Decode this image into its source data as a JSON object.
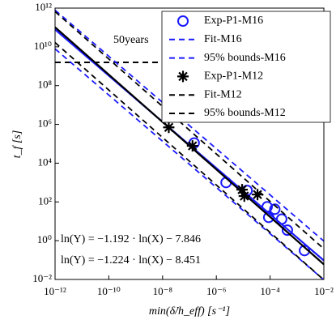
{
  "chart_data": {
    "type": "scatter",
    "log_x": true,
    "log_y": true,
    "xlabel": "min(δ̇/h_eff) [s⁻¹]",
    "ylabel": "t_f [s]",
    "xlim": [
      1e-12,
      0.01
    ],
    "ylim": [
      0.01,
      1000000000000
    ],
    "xticks": [
      {
        "value": 1e-12,
        "label": "10⁻¹²"
      },
      {
        "value": 1e-10,
        "label": "10⁻¹⁰"
      },
      {
        "value": 1e-08,
        "label": "10⁻⁸"
      },
      {
        "value": 1e-06,
        "label": "10⁻⁶"
      },
      {
        "value": 0.0001,
        "label": "10⁻⁴"
      },
      {
        "value": 0.01,
        "label": "10⁻²"
      }
    ],
    "yticks": [
      {
        "value": 0.01,
        "label": "10⁻²"
      },
      {
        "value": 1,
        "label": "10⁰"
      },
      {
        "value": 100,
        "label": "10²"
      },
      {
        "value": 10000,
        "label": "10⁴"
      },
      {
        "value": 1000000,
        "label": "10⁶"
      },
      {
        "value": 100000000,
        "label": "10⁸"
      },
      {
        "value": 10000000000,
        "label": "10¹⁰"
      },
      {
        "value": 1000000000000,
        "label": "10¹²"
      }
    ],
    "legend": "upper right",
    "reference_line": {
      "value": 1580000000,
      "label": "50years",
      "color": "#000000"
    },
    "annotations": [
      {
        "text": "ln(Y) = −1.192 · ln(X) − 7.846",
        "color": "#1a1aff"
      },
      {
        "text": "ln(Y) = −1.224 · ln(X) − 8.451",
        "color": "#000000"
      }
    ],
    "series": [
      {
        "name": "Exp-P1-M16",
        "kind": "marker",
        "marker": "circle",
        "color": "#1a1aff",
        "x": [
          1.5e-07,
          2.3e-06,
          1.4e-05,
          7.8e-05,
          0.00015,
          8.9e-05,
          0.00027,
          0.00044,
          0.0019
        ],
        "values": [
          110000,
          1000,
          390,
          56,
          42,
          16,
          13,
          3.5,
          0.31
        ]
      },
      {
        "name": "Fit-M16",
        "kind": "line",
        "dash": false,
        "color": "#1a1aff",
        "x": [
          1e-12,
          0.01
        ],
        "values": [
          78900000000,
          0.0948
        ]
      },
      {
        "name": "95% bounds-M16",
        "kind": "band",
        "dash": true,
        "color": "#1a1aff",
        "x": [
          1e-12,
          0.01
        ],
        "lower": [
          7900000000,
          0.0095
        ],
        "upper": [
          790000000000,
          0.95
        ]
      },
      {
        "name": "Exp-P1-M12",
        "kind": "marker",
        "marker": "star",
        "color": "#000000",
        "x": [
          1.7e-08,
          1.3e-07,
          9.1e-06,
          1.1e-05,
          3.4e-05
        ],
        "values": [
          700000,
          78000,
          430,
          200,
          240
        ]
      },
      {
        "name": "Fit-M12",
        "kind": "line",
        "dash": false,
        "color": "#000000",
        "x": [
          1e-12,
          0.01
        ],
        "values": [
          104000000000,
          0.06
        ]
      },
      {
        "name": "95% bounds-M12",
        "kind": "band",
        "dash": true,
        "color": "#000000",
        "x": [
          1e-12,
          0.01
        ],
        "lower": [
          16600000000,
          0.0095
        ],
        "upper": [
          661000000000,
          0.38
        ]
      }
    ]
  }
}
